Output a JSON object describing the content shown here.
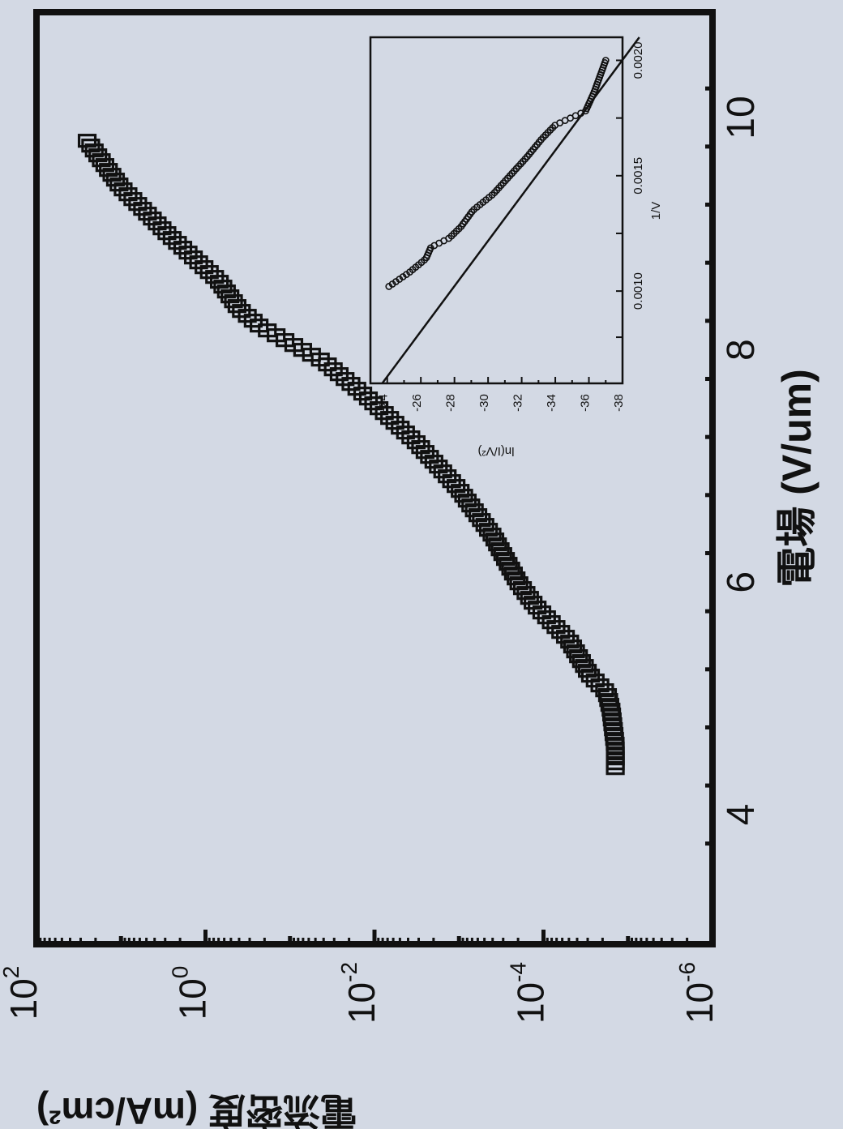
{
  "figure": {
    "background": "#d3d9e4",
    "ink": "#111111",
    "orientation": "rotated 90 degrees counter-clockwise"
  },
  "chart_data": [
    {
      "type": "scatter",
      "marker": "open-square",
      "xlabel": "電場 (V/um)",
      "ylabel": "電流密度 (mA/cm²)",
      "xlim": [
        3.6,
        10.4
      ],
      "ylim": [
        -6,
        2
      ],
      "yscale": "log10",
      "x_ticks": [
        4,
        6,
        8,
        10
      ],
      "x_tick_labels": [
        "4",
        "6",
        "8",
        "10"
      ],
      "y_ticks": [
        2,
        0,
        -2,
        -4,
        -6
      ],
      "y_tick_labels": [
        {
          "base": "10",
          "exp": "2"
        },
        {
          "base": "10",
          "exp": "0"
        },
        {
          "base": "10",
          "exp": "-2"
        },
        {
          "base": "10",
          "exp": "-4"
        },
        {
          "base": "10",
          "exp": "-6"
        }
      ],
      "curve_anchors": {
        "x": [
          4.4,
          4.6,
          4.9,
          5.05,
          5.2,
          5.5,
          5.8,
          6.0,
          6.4,
          6.8,
          7.2,
          7.6,
          7.9,
          8.2,
          8.35,
          8.6,
          9.0,
          9.4,
          9.8
        ],
        "log10_y": [
          -4.85,
          -4.85,
          -4.8,
          -4.75,
          -4.55,
          -4.3,
          -3.9,
          -3.7,
          -3.4,
          -3.0,
          -2.5,
          -1.9,
          -1.4,
          -0.65,
          -0.4,
          -0.15,
          0.45,
          1.0,
          1.4
        ]
      },
      "n_points": 130
    },
    {
      "type": "scatter",
      "subtype": "inset Fowler-Nordheim plot with linear fit",
      "marker": "open-circle",
      "xlabel": "1/V",
      "ylabel": "ln(I/V²)",
      "xlim": [
        0.0006,
        0.0021
      ],
      "ylim": [
        -38,
        -23
      ],
      "x_ticks": [
        0.001,
        0.0015,
        0.002
      ],
      "x_tick_labels": [
        "0.0010",
        "0.0015",
        "0.0020"
      ],
      "y_ticks": [
        -24,
        -26,
        -28,
        -30,
        -32,
        -34,
        -36,
        -38
      ],
      "y_tick_labels": [
        "-24",
        "-26",
        "-28",
        "-30",
        "-32",
        "-34",
        "-36",
        "-38"
      ],
      "curve_anchors": {
        "x": [
          0.00102,
          0.00108,
          0.00114,
          0.00119,
          0.00123,
          0.00128,
          0.00135,
          0.00142,
          0.0015,
          0.00158,
          0.00166,
          0.00172,
          0.00178,
          0.00186,
          0.00194,
          0.002
        ],
        "y": [
          -24.1,
          -25.3,
          -26.3,
          -26.6,
          -27.7,
          -28.4,
          -29.1,
          -30.3,
          -31.3,
          -32.3,
          -33.2,
          -34.0,
          -35.8,
          -36.3,
          -36.7,
          -37.0
        ]
      },
      "n_points": 95,
      "fit_line": {
        "x": [
          0.0006,
          0.0021
        ],
        "y": [
          -23.7,
          -39.0
        ]
      }
    }
  ]
}
